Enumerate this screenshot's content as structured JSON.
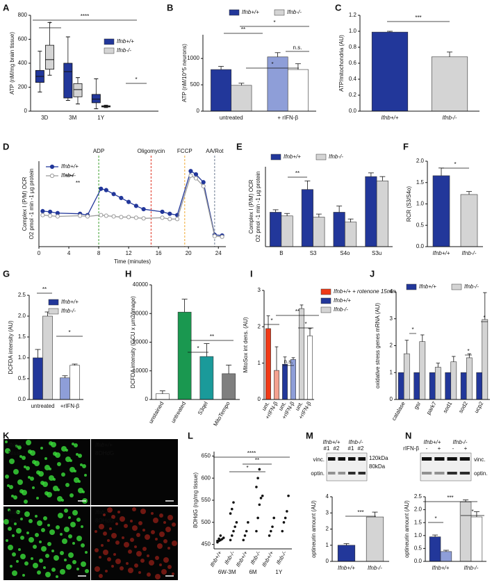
{
  "chart_data": [
    {
      "panel": "A",
      "type": "box",
      "ylabel": "ATP (nM/mg brain tissue)",
      "categories": [
        "3D",
        "3M",
        "1Y"
      ],
      "ylim": [
        0,
        800
      ],
      "yticks": [
        0,
        200,
        400,
        600,
        800
      ],
      "series": [
        {
          "name": "Ifnb+/+",
          "color": "#22379a",
          "values": [
            [
              160,
              240,
              290,
              340,
              500
            ],
            [
              90,
              110,
              330,
              400,
              620
            ],
            [
              20,
              70,
              100,
              140,
              270
            ]
          ]
        },
        {
          "name": "Ifnb-/-",
          "color": "#d4d4d4",
          "values": [
            [
              300,
              350,
              430,
              550,
              740
            ],
            [
              60,
              120,
              180,
              230,
              280
            ],
            [
              30,
              35,
              40,
              45,
              50
            ]
          ]
        }
      ],
      "annotations": [
        "*",
        "****",
        "*"
      ]
    },
    {
      "panel": "B",
      "type": "bar",
      "ylabel": "ATP (nM/10^5 neurons)",
      "categories": [
        "untreated",
        "+ rIFN-β"
      ],
      "ylim": [
        0,
        1450
      ],
      "yticks": [
        0,
        500,
        1000
      ],
      "series": [
        {
          "name": "Ifnb+/+",
          "color": "#22379a",
          "colors": [
            "#22379a",
            "#8e9ed8"
          ],
          "values": [
            790,
            1030
          ],
          "errors": [
            60,
            80
          ]
        },
        {
          "name": "Ifnb-/-",
          "color": "#d4d4d4",
          "colors": [
            "#d4d4d4",
            "#ffffff"
          ],
          "values": [
            490,
            790
          ],
          "errors": [
            40,
            110
          ]
        }
      ],
      "annotations": [
        "**",
        "*",
        "n.s.",
        "*"
      ]
    },
    {
      "panel": "C",
      "type": "bar",
      "ylabel": "ATP/mitochondria (AU)",
      "categories": [
        "Ifnb+/+",
        "Ifnb-/-"
      ],
      "ylim": [
        0,
        1.2
      ],
      "yticks": [
        {
          "value": 0,
          "label": "0.0"
        },
        0.2,
        0.4,
        0.6,
        0.8,
        {
          "value": 1,
          "label": "1.0"
        },
        1.2
      ],
      "values": [
        0.99,
        0.68
      ],
      "errors": [
        0.01,
        0.06
      ],
      "colors": [
        "#22379a",
        "#d4d4d4"
      ],
      "annotations": [
        "***"
      ]
    },
    {
      "panel": "D",
      "type": "line",
      "ylabel": [
        "Complex I (P/M) OCR",
        "O2 pmol -1 min -1 µg protein"
      ],
      "xlabel": "Time (minutes)",
      "x": [
        0.5,
        1.5,
        2.5,
        5.5,
        6.5,
        8.3,
        9,
        10,
        11,
        12,
        13,
        14,
        16.5,
        17.5,
        18.5,
        20.3,
        21,
        22,
        23.5,
        24.5
      ],
      "xlim": [
        0,
        25
      ],
      "xticks": [
        0,
        4,
        8,
        12,
        16,
        20,
        24
      ],
      "ylim": [
        0,
        130
      ],
      "series": [
        {
          "name": "Ifnb+/+",
          "color": "#22379a",
          "values": [
            54,
            53,
            51,
            50,
            48,
            88,
            86,
            80,
            74,
            68,
            62,
            57,
            53,
            50,
            48,
            115,
            110,
            98,
            18,
            17
          ]
        },
        {
          "name": "Ifnb-/-",
          "color": "#9a9a9a",
          "values": [
            48,
            47,
            46,
            47,
            46,
            48,
            47,
            46,
            45,
            45,
            44,
            43,
            44,
            42,
            42,
            108,
            104,
            92,
            16,
            15
          ]
        }
      ],
      "markers": [
        {
          "x": 8,
          "label": "ADP",
          "color": "#3aa02c"
        },
        {
          "x": 15,
          "label": "Oligomycin",
          "color": "#e0301e"
        },
        {
          "x": 19.5,
          "label": "FCCP",
          "color": "#f0a830"
        },
        {
          "x": 23.5,
          "label": "AA/Rot",
          "color": "#6a7a90"
        }
      ],
      "annotations": [
        "****",
        "**"
      ]
    },
    {
      "panel": "E",
      "type": "bar",
      "ylabel": [
        "Complex I (P/M) OCR",
        "O2 pmol -1 min -1 µg protein"
      ],
      "categories": [
        "B",
        "S3",
        "S4o",
        "S3u"
      ],
      "ylim": [
        0,
        130
      ],
      "series": [
        {
          "name": "Ifnb+/+",
          "color": "#22379a",
          "values": [
            56,
            93,
            56,
            114
          ],
          "errors": [
            4,
            14,
            10,
            6
          ]
        },
        {
          "name": "Ifnb-/-",
          "color": "#d4d4d4",
          "values": [
            50,
            48,
            40,
            107
          ],
          "errors": [
            4,
            5,
            5,
            7
          ]
        }
      ],
      "annotations": [
        "**"
      ]
    },
    {
      "panel": "F",
      "type": "bar",
      "ylabel": "RCR (S3/S4o)",
      "categories": [
        "Ifnb+/+",
        "Ifnb-/-"
      ],
      "ylim": [
        0,
        2
      ],
      "yticks": [
        {
          "value": 0,
          "label": "0.0"
        },
        0.5,
        {
          "value": 1,
          "label": "1.0"
        },
        1.5,
        {
          "value": 2,
          "label": "2.0"
        }
      ],
      "values": [
        1.66,
        1.22
      ],
      "errors": [
        0.18,
        0.07
      ],
      "colors": [
        "#22379a",
        "#d4d4d4"
      ],
      "annotations": [
        "*"
      ]
    },
    {
      "panel": "G",
      "type": "bar",
      "ylabel": "DCFDA intensity (AU)",
      "categories": [
        "untreated",
        "+rIFN-β"
      ],
      "ylim": [
        0,
        2.5
      ],
      "yticks": [
        {
          "value": 0,
          "label": "0.0"
        },
        0.5,
        {
          "value": 1,
          "label": "1.0"
        },
        1.5,
        {
          "value": 2,
          "label": "2.0"
        },
        2.5
      ],
      "series": [
        {
          "name": "Ifnb+/+",
          "color": "#22379a",
          "colors": [
            "#22379a",
            "#8e9ed8"
          ],
          "values": [
            1.0,
            0.52
          ],
          "errors": [
            0.2,
            0.05
          ]
        },
        {
          "name": "Ifnb-/-",
          "color": "#d4d4d4",
          "colors": [
            "#d4d4d4",
            "#ffffff"
          ],
          "values": [
            2.0,
            0.82
          ],
          "errors": [
            0.1,
            0.03
          ]
        }
      ],
      "annotations": [
        "**",
        "*"
      ]
    },
    {
      "panel": "H",
      "type": "bar",
      "ylabel": "DCFDA intensity (GCU x µm2/Image)",
      "categories": [
        "unstained",
        "untreated",
        "S3qel",
        "MitoTempo"
      ],
      "ylim": [
        0,
        40000
      ],
      "yticks": [
        0,
        10000,
        20000,
        30000,
        40000
      ],
      "values": [
        2000,
        30500,
        15000,
        9000
      ],
      "errors": [
        1000,
        4500,
        4500,
        3000
      ],
      "colors": [
        "#ffffff",
        "#1a9850",
        "#1a9a9a",
        "#7f7f7f"
      ],
      "annotations": [
        "*",
        "**"
      ]
    },
    {
      "panel": "I",
      "type": "bar",
      "ylabel": "MitoSox int dens. (AU)",
      "categories": [
        "unt.",
        "+rIFN-β",
        "unt.",
        "+rIFN-β",
        "unt.",
        "+rIFN-β"
      ],
      "ylim": [
        0,
        3
      ],
      "yticks": [
        0,
        1,
        2,
        3
      ],
      "values": [
        1.95,
        0.8,
        0.97,
        1.1,
        2.5,
        1.75
      ],
      "errors": [
        0.35,
        0.65,
        0.2,
        0.05,
        0.1,
        0.2
      ],
      "colors": [
        "#f03a17",
        "#f4a190",
        "#22379a",
        "#8e9ed8",
        "#d4d4d4",
        "#ffffff"
      ],
      "legend": [
        {
          "name": "Ifnb+/+ + rotenone 15min",
          "color": "#f03a17"
        },
        {
          "name": "Ifnb+/+",
          "color": "#22379a"
        },
        {
          "name": "Ifnb-/-",
          "color": "#d4d4d4"
        }
      ],
      "annotations": [
        "*",
        "n.s.",
        "**",
        "*"
      ]
    },
    {
      "panel": "J",
      "type": "bar",
      "ylabel": "oxidative stress genes mRNA (AU)",
      "categories": [
        "catalase",
        "gsr",
        "park7",
        "sod1",
        "sod2",
        "ucp2"
      ],
      "ylim": [
        0,
        4
      ],
      "yticks": [
        0,
        1,
        2,
        3,
        4
      ],
      "series": [
        {
          "name": "Ifnb+/+",
          "color": "#22379a",
          "values": [
            1,
            1,
            1,
            1,
            1,
            1
          ]
        },
        {
          "name": "Ifnb-/-",
          "color": "#d4d4d4",
          "values": [
            1.7,
            2.15,
            1.2,
            1.4,
            1.55,
            2.97
          ],
          "errors": [
            0.5,
            0.25,
            0.15,
            0.2,
            0.15,
            1.0
          ]
        }
      ],
      "annotations": [
        "*",
        "*",
        "*"
      ]
    },
    {
      "panel": "K",
      "type": "image",
      "labels": [
        "Ifnb+/+",
        "Nissl",
        "Ifnb+/+",
        "8OHdG",
        "Ifnb-/-",
        "Nissl",
        "Ifnb-/-",
        "8OHdG"
      ]
    },
    {
      "panel": "L",
      "type": "dot",
      "ylabel": "8OHdG (ng/mg tissue)",
      "categories": [
        "Ifnb+/+",
        "Ifnb-/-",
        "Ifnb+/+",
        "Ifnb-/-",
        "Ifnb+/+",
        "Ifnb-/-"
      ],
      "groups": [
        "6W-3M",
        "6M",
        "1Y"
      ],
      "color": "#111111",
      "ylim": [
        440,
        660
      ],
      "yticks": [
        450,
        500,
        550,
        600,
        650
      ],
      "values": [
        [
          455,
          458,
          460,
          462,
          465,
          458,
          463,
          470
        ],
        [
          460,
          470,
          480,
          490,
          500,
          520,
          530,
          545
        ],
        [
          460,
          470,
          480,
          500
        ],
        [
          480,
          510,
          540,
          555,
          560,
          580,
          600,
          620
        ],
        [
          470,
          480,
          490,
          510
        ],
        [
          480,
          500,
          510,
          525,
          560
        ]
      ],
      "annotations": [
        "****",
        "**",
        "*"
      ]
    },
    {
      "panel": "M",
      "type": "bar",
      "ylabel": "optineurin amount (AU)",
      "categories": [
        "Ifnb+/+",
        "Ifnb-/-"
      ],
      "ylim": [
        0,
        4
      ],
      "yticks": [
        0,
        1,
        2,
        3,
        4
      ],
      "values": [
        1.0,
        2.75
      ],
      "errors": [
        0.1,
        0.3
      ],
      "colors": [
        "#22379a",
        "#d4d4d4"
      ],
      "annotations": [
        "***"
      ],
      "blot": {
        "labels": [
          "Ifnb+/+",
          "Ifnb-/-",
          "#1",
          "#2",
          "#1",
          "#2",
          "vinc.",
          "optin.",
          "120kDa",
          "80kDa"
        ]
      }
    },
    {
      "panel": "N",
      "type": "bar",
      "ylabel": "optineurin amount (AU)",
      "categories": [
        "Ifnb+/+",
        "Ifnb-/-"
      ],
      "ylim": [
        0,
        2.5
      ],
      "yticks": [
        {
          "value": 0,
          "label": "0.0"
        },
        0.5,
        {
          "value": 1,
          "label": "1.0"
        },
        1.5,
        {
          "value": 2,
          "label": "2.0"
        },
        2.5
      ],
      "series": [
        {
          "colors": [
            "#22379a",
            "#d4d4d4"
          ],
          "values": [
            0.95,
            2.3
          ],
          "errors": [
            0.07,
            0.08
          ]
        },
        {
          "colors": [
            "#8e9ed8",
            "#ffffff"
          ],
          "values": [
            0.38,
            1.72
          ],
          "errors": [
            0.05,
            0.2
          ]
        }
      ],
      "annotations": [
        "*",
        "***",
        "*"
      ],
      "blot": {
        "labels": [
          "Ifnb+/+",
          "Ifnb-/-",
          "rIFN-β",
          "-",
          "+",
          "-",
          "+",
          "vinc.",
          "optin."
        ]
      }
    }
  ]
}
